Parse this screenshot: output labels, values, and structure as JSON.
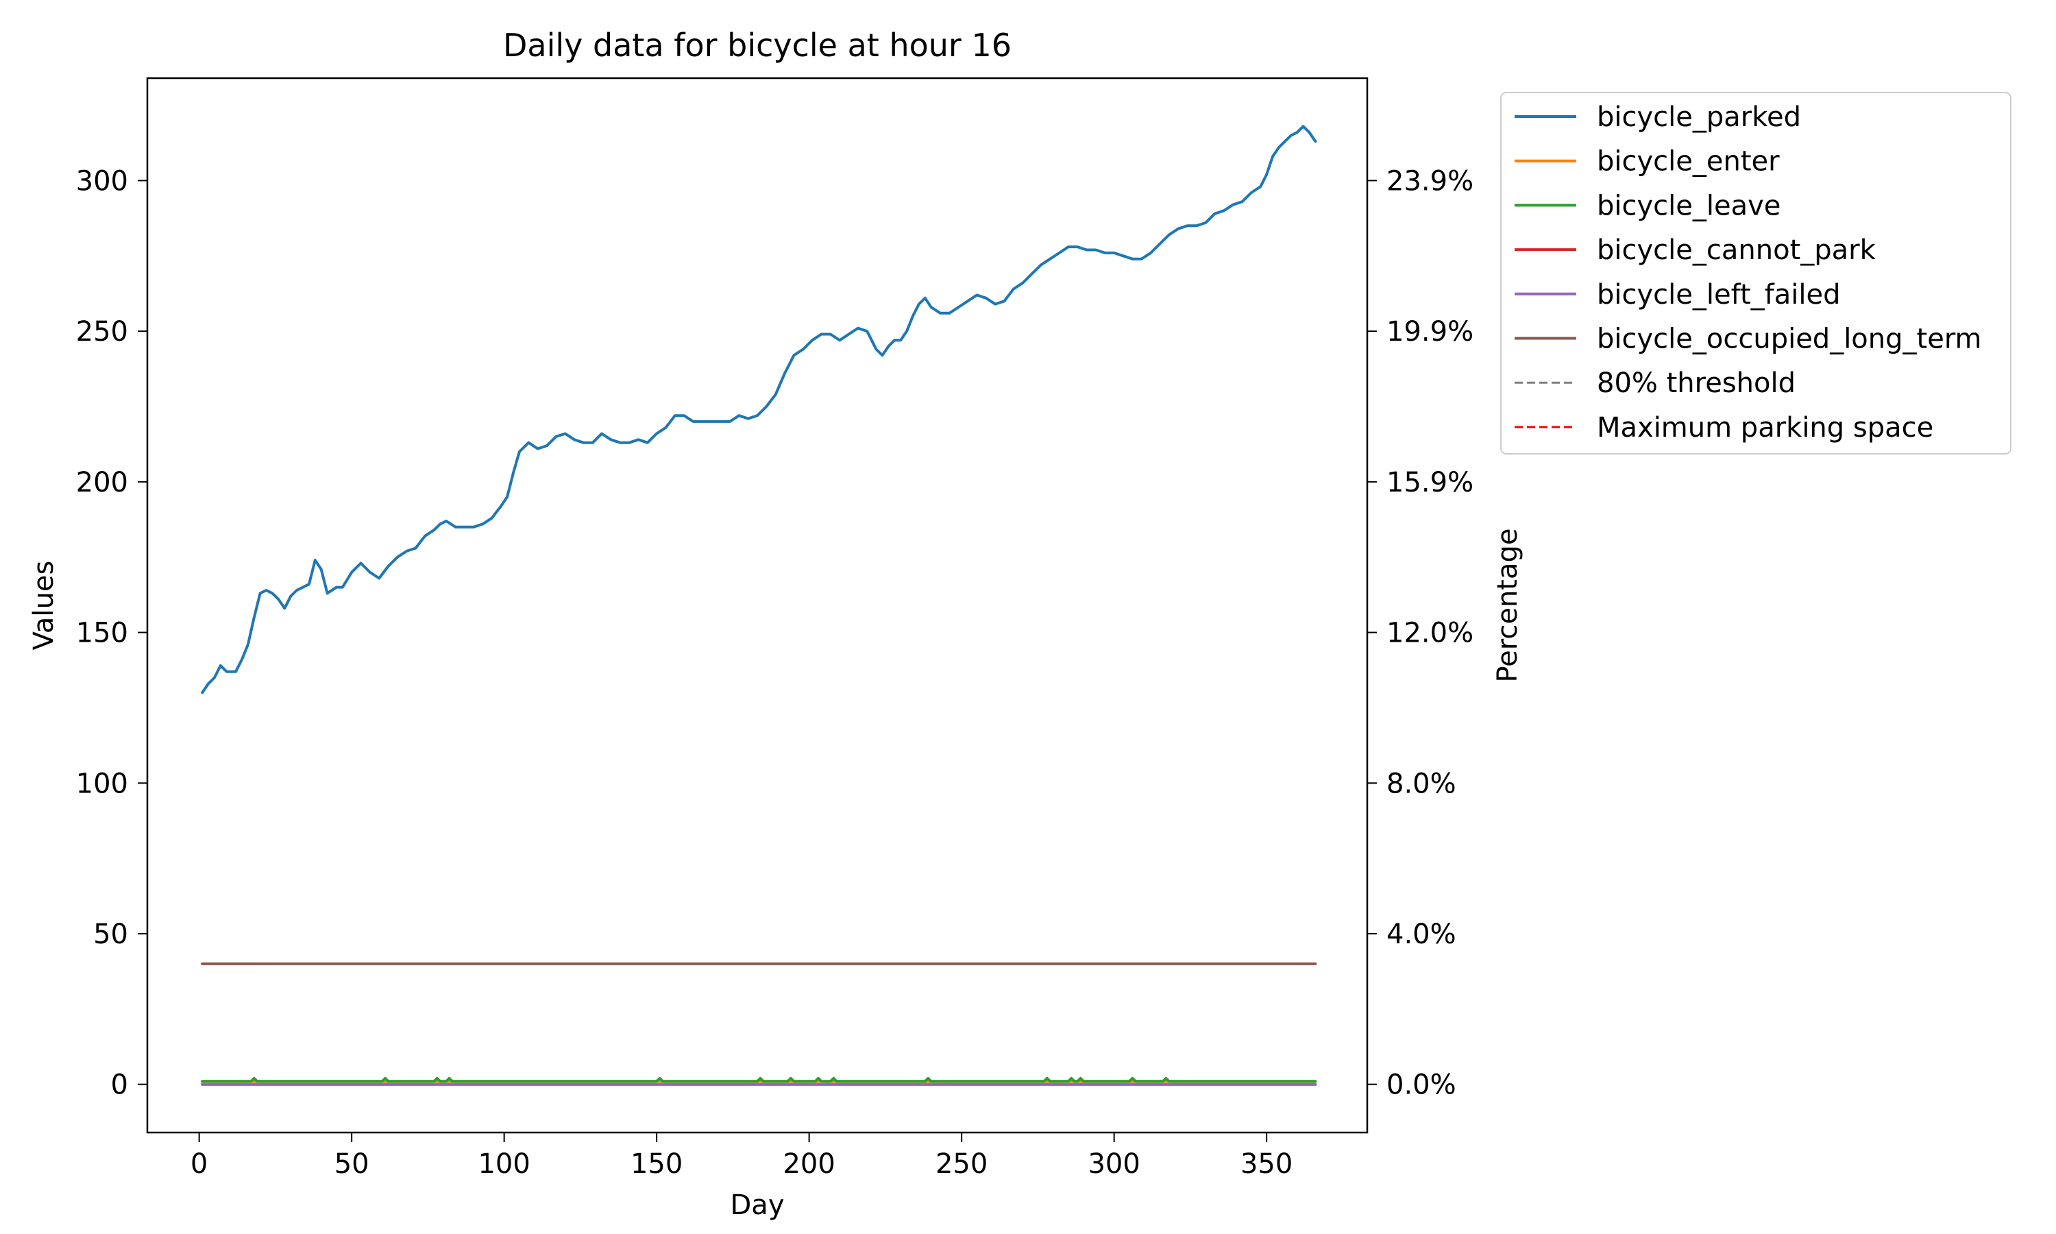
{
  "chart_data": {
    "type": "line",
    "title": "Daily data for bicycle at hour 16",
    "xlabel": "Day",
    "ylabel": "Values",
    "y2label": "Percentage",
    "xlim": [
      -17,
      383
    ],
    "ylim": [
      -16,
      334
    ],
    "xticks": [
      0,
      50,
      100,
      150,
      200,
      250,
      300,
      350
    ],
    "yticks": [
      0,
      50,
      100,
      150,
      200,
      250,
      300
    ],
    "y2ticks": [
      {
        "value": 0,
        "label": "0.0%"
      },
      {
        "value": 50,
        "label": "4.0%"
      },
      {
        "value": 100,
        "label": "8.0%"
      },
      {
        "value": 150,
        "label": "12.0%"
      },
      {
        "value": 200,
        "label": "15.9%"
      },
      {
        "value": 250,
        "label": "19.9%"
      },
      {
        "value": 300,
        "label": "23.9%"
      }
    ],
    "grid": false,
    "legend_position": "outside-top-right",
    "series": [
      {
        "name": "bicycle_parked",
        "color": "#1f77b4",
        "style": "solid",
        "points": [
          [
            1,
            130
          ],
          [
            3,
            133
          ],
          [
            5,
            135
          ],
          [
            7,
            139
          ],
          [
            9,
            137
          ],
          [
            12,
            137
          ],
          [
            14,
            141
          ],
          [
            16,
            146
          ],
          [
            18,
            155
          ],
          [
            20,
            163
          ],
          [
            22,
            164
          ],
          [
            24,
            163
          ],
          [
            26,
            161
          ],
          [
            28,
            158
          ],
          [
            30,
            162
          ],
          [
            32,
            164
          ],
          [
            34,
            165
          ],
          [
            36,
            166
          ],
          [
            38,
            174
          ],
          [
            40,
            171
          ],
          [
            42,
            163
          ],
          [
            45,
            165
          ],
          [
            47,
            165
          ],
          [
            50,
            170
          ],
          [
            53,
            173
          ],
          [
            56,
            170
          ],
          [
            59,
            168
          ],
          [
            62,
            172
          ],
          [
            65,
            175
          ],
          [
            68,
            177
          ],
          [
            71,
            178
          ],
          [
            74,
            182
          ],
          [
            77,
            184
          ],
          [
            79,
            186
          ],
          [
            81,
            187
          ],
          [
            84,
            185
          ],
          [
            86,
            185
          ],
          [
            90,
            185
          ],
          [
            93,
            186
          ],
          [
            96,
            188
          ],
          [
            99,
            192
          ],
          [
            101,
            195
          ],
          [
            103,
            203
          ],
          [
            105,
            210
          ],
          [
            108,
            213
          ],
          [
            111,
            211
          ],
          [
            114,
            212
          ],
          [
            117,
            215
          ],
          [
            120,
            216
          ],
          [
            123,
            214
          ],
          [
            126,
            213
          ],
          [
            129,
            213
          ],
          [
            132,
            216
          ],
          [
            135,
            214
          ],
          [
            138,
            213
          ],
          [
            141,
            213
          ],
          [
            144,
            214
          ],
          [
            147,
            213
          ],
          [
            150,
            216
          ],
          [
            153,
            218
          ],
          [
            156,
            222
          ],
          [
            159,
            222
          ],
          [
            162,
            220
          ],
          [
            165,
            220
          ],
          [
            168,
            220
          ],
          [
            171,
            220
          ],
          [
            174,
            220
          ],
          [
            177,
            222
          ],
          [
            180,
            221
          ],
          [
            183,
            222
          ],
          [
            186,
            225
          ],
          [
            189,
            229
          ],
          [
            192,
            236
          ],
          [
            195,
            242
          ],
          [
            198,
            244
          ],
          [
            201,
            247
          ],
          [
            204,
            249
          ],
          [
            207,
            249
          ],
          [
            210,
            247
          ],
          [
            213,
            249
          ],
          [
            216,
            251
          ],
          [
            219,
            250
          ],
          [
            222,
            244
          ],
          [
            224,
            242
          ],
          [
            226,
            245
          ],
          [
            228,
            247
          ],
          [
            230,
            247
          ],
          [
            232,
            250
          ],
          [
            234,
            255
          ],
          [
            236,
            259
          ],
          [
            238,
            261
          ],
          [
            240,
            258
          ],
          [
            243,
            256
          ],
          [
            246,
            256
          ],
          [
            249,
            258
          ],
          [
            252,
            260
          ],
          [
            255,
            262
          ],
          [
            258,
            261
          ],
          [
            261,
            259
          ],
          [
            264,
            260
          ],
          [
            267,
            264
          ],
          [
            270,
            266
          ],
          [
            273,
            269
          ],
          [
            276,
            272
          ],
          [
            279,
            274
          ],
          [
            282,
            276
          ],
          [
            285,
            278
          ],
          [
            288,
            278
          ],
          [
            291,
            277
          ],
          [
            294,
            277
          ],
          [
            297,
            276
          ],
          [
            300,
            276
          ],
          [
            303,
            275
          ],
          [
            306,
            274
          ],
          [
            309,
            274
          ],
          [
            312,
            276
          ],
          [
            315,
            279
          ],
          [
            318,
            282
          ],
          [
            321,
            284
          ],
          [
            324,
            285
          ],
          [
            327,
            285
          ],
          [
            330,
            286
          ],
          [
            333,
            289
          ],
          [
            336,
            290
          ],
          [
            339,
            292
          ],
          [
            342,
            293
          ],
          [
            345,
            296
          ],
          [
            348,
            298
          ],
          [
            350,
            302
          ],
          [
            352,
            308
          ],
          [
            354,
            311
          ],
          [
            356,
            313
          ],
          [
            358,
            315
          ],
          [
            360,
            316
          ],
          [
            362,
            318
          ],
          [
            364,
            316
          ],
          [
            366,
            313
          ]
        ]
      },
      {
        "name": "bicycle_enter",
        "color": "#ff7f0e",
        "style": "solid",
        "constant": 1
      },
      {
        "name": "bicycle_leave",
        "color": "#2ca02c",
        "style": "solid",
        "constant": 1,
        "spikes": [
          18,
          61,
          78,
          82,
          151,
          184,
          194,
          203,
          208,
          239,
          278,
          286,
          289,
          306,
          317
        ]
      },
      {
        "name": "bicycle_cannot_park",
        "color": "#d62728",
        "style": "solid",
        "constant": 0
      },
      {
        "name": "bicycle_left_failed",
        "color": "#9467bd",
        "style": "solid",
        "constant": 0
      },
      {
        "name": "bicycle_occupied_long_term",
        "color": "#8c564b",
        "style": "solid",
        "constant": 40
      },
      {
        "name": "80% threshold",
        "color": "#808080",
        "style": "dashed"
      },
      {
        "name": "Maximum parking space",
        "color": "#ff0000",
        "style": "dashed"
      }
    ]
  }
}
